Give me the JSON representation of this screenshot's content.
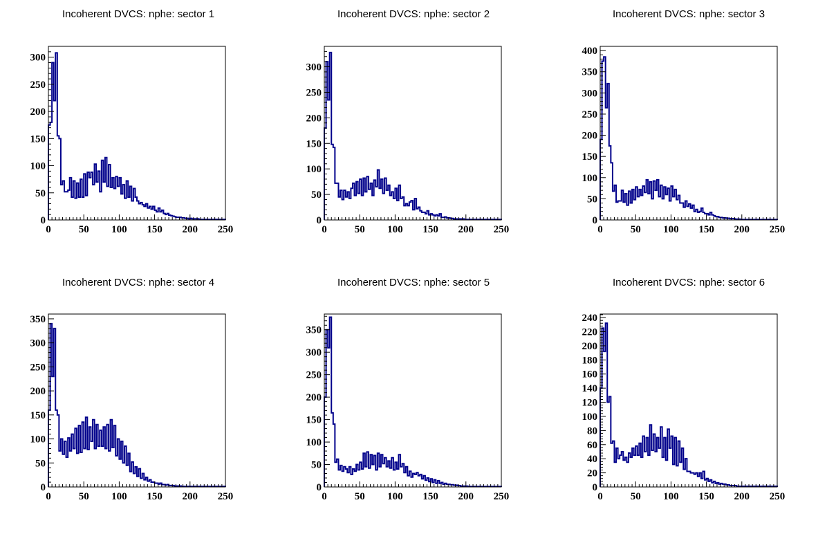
{
  "chart_data": [
    {
      "type": "histogram",
      "title": "Incoherent DVCS: nphe: sector 1",
      "xlim": [
        0,
        250
      ],
      "ylim": [
        0,
        320
      ],
      "xticks": [
        0,
        50,
        100,
        150,
        200,
        250
      ],
      "yticks": [
        0,
        50,
        100,
        150,
        200,
        250,
        300
      ],
      "bin_width": 2.5,
      "color": "#00008b",
      "values": [
        175,
        180,
        290,
        220,
        308,
        155,
        150,
        65,
        72,
        52,
        52,
        55,
        78,
        42,
        72,
        40,
        68,
        42,
        75,
        42,
        85,
        45,
        88,
        78,
        88,
        65,
        103,
        70,
        90,
        52,
        110,
        70,
        115,
        62,
        102,
        60,
        78,
        58,
        80,
        62,
        78,
        48,
        65,
        40,
        72,
        42,
        62,
        35,
        58,
        42,
        35,
        30,
        32,
        28,
        25,
        30,
        22,
        25,
        20,
        25,
        18,
        15,
        22,
        15,
        18,
        12,
        10,
        12,
        9,
        8,
        7,
        6,
        5,
        5,
        5,
        4,
        4,
        3,
        3,
        2,
        3,
        2,
        2,
        2,
        2,
        1,
        1,
        1,
        1,
        1,
        1,
        1,
        1,
        1,
        1,
        1,
        1,
        1,
        1,
        1
      ]
    },
    {
      "type": "histogram",
      "title": "Incoherent DVCS: nphe: sector 2",
      "xlim": [
        0,
        250
      ],
      "ylim": [
        0,
        340
      ],
      "xticks": [
        0,
        50,
        100,
        150,
        200,
        250
      ],
      "yticks": [
        0,
        50,
        100,
        150,
        200,
        250,
        300
      ],
      "bin_width": 2.5,
      "color": "#00008b",
      "values": [
        180,
        310,
        235,
        328,
        148,
        142,
        72,
        72,
        45,
        58,
        40,
        58,
        45,
        55,
        42,
        62,
        72,
        48,
        75,
        52,
        80,
        48,
        82,
        55,
        85,
        60,
        72,
        48,
        78,
        65,
        98,
        62,
        80,
        52,
        82,
        58,
        68,
        48,
        55,
        42,
        62,
        38,
        68,
        42,
        45,
        28,
        32,
        28,
        35,
        38,
        20,
        42,
        22,
        25,
        18,
        15,
        15,
        12,
        18,
        10,
        12,
        10,
        8,
        10,
        8,
        12,
        5,
        5,
        6,
        4,
        4,
        3,
        3,
        2,
        2,
        1,
        2,
        2,
        2,
        1,
        1,
        1,
        1,
        1,
        1,
        1,
        1,
        1,
        1,
        1,
        1,
        1,
        1,
        1,
        1,
        1,
        1,
        1,
        1,
        1
      ]
    },
    {
      "type": "histogram",
      "title": "Incoherent DVCS: nphe: sector 3",
      "xlim": [
        0,
        250
      ],
      "ylim": [
        0,
        410
      ],
      "xticks": [
        0,
        50,
        100,
        150,
        200,
        250
      ],
      "yticks": [
        0,
        50,
        100,
        150,
        200,
        250,
        300,
        350,
        400
      ],
      "bin_width": 2.5,
      "color": "#00008b",
      "values": [
        190,
        375,
        385,
        265,
        322,
        175,
        135,
        68,
        82,
        42,
        45,
        45,
        70,
        42,
        62,
        35,
        68,
        40,
        72,
        48,
        78,
        55,
        72,
        58,
        80,
        65,
        95,
        62,
        90,
        50,
        92,
        70,
        95,
        55,
        82,
        50,
        78,
        60,
        75,
        45,
        80,
        55,
        72,
        48,
        58,
        40,
        40,
        30,
        45,
        32,
        38,
        28,
        35,
        20,
        25,
        18,
        20,
        28,
        18,
        15,
        15,
        12,
        18,
        12,
        10,
        8,
        8,
        6,
        6,
        5,
        5,
        4,
        4,
        3,
        3,
        3,
        2,
        2,
        2,
        1,
        1,
        1,
        1,
        1,
        1,
        1,
        1,
        1,
        1,
        1,
        1,
        1,
        1,
        1,
        1,
        1,
        1,
        1,
        1,
        1
      ]
    },
    {
      "type": "histogram",
      "title": "Incoherent DVCS: nphe: sector 4",
      "xlim": [
        0,
        250
      ],
      "ylim": [
        0,
        360
      ],
      "xticks": [
        0,
        50,
        100,
        150,
        200,
        250
      ],
      "yticks": [
        0,
        50,
        100,
        150,
        200,
        250,
        300,
        350
      ],
      "bin_width": 2.5,
      "color": "#00008b",
      "values": [
        160,
        340,
        230,
        330,
        160,
        150,
        75,
        100,
        68,
        95,
        62,
        102,
        75,
        110,
        80,
        122,
        70,
        128,
        72,
        135,
        80,
        145,
        78,
        125,
        95,
        140,
        80,
        130,
        85,
        118,
        85,
        125,
        80,
        130,
        75,
        140,
        82,
        128,
        65,
        100,
        58,
        95,
        50,
        85,
        45,
        70,
        32,
        52,
        28,
        42,
        22,
        38,
        18,
        28,
        15,
        20,
        12,
        15,
        10,
        10,
        8,
        8,
        6,
        8,
        5,
        5,
        4,
        5,
        3,
        3,
        3,
        2,
        2,
        2,
        2,
        1,
        1,
        1,
        1,
        1,
        1,
        1,
        1,
        1,
        1,
        1,
        1,
        1,
        1,
        1,
        1,
        1,
        1,
        1,
        1,
        1,
        1,
        1,
        1,
        1
      ]
    },
    {
      "type": "histogram",
      "title": "Incoherent DVCS: nphe: sector 5",
      "xlim": [
        0,
        250
      ],
      "ylim": [
        0,
        385
      ],
      "xticks": [
        0,
        50,
        100,
        150,
        200,
        250
      ],
      "yticks": [
        0,
        50,
        100,
        150,
        200,
        250,
        300,
        350
      ],
      "bin_width": 2.5,
      "color": "#00008b",
      "values": [
        200,
        350,
        310,
        378,
        165,
        140,
        55,
        62,
        38,
        48,
        35,
        45,
        40,
        32,
        45,
        28,
        40,
        35,
        50,
        38,
        55,
        40,
        75,
        45,
        78,
        42,
        72,
        50,
        70,
        38,
        75,
        45,
        72,
        52,
        65,
        45,
        58,
        42,
        65,
        38,
        55,
        40,
        72,
        45,
        52,
        32,
        45,
        25,
        35,
        22,
        30,
        28,
        32,
        25,
        28,
        18,
        25,
        15,
        20,
        12,
        18,
        10,
        16,
        8,
        14,
        8,
        10,
        6,
        8,
        6,
        6,
        5,
        5,
        4,
        4,
        3,
        3,
        2,
        2,
        2,
        2,
        1,
        1,
        1,
        1,
        1,
        1,
        1,
        1,
        1,
        1,
        1,
        1,
        1,
        1,
        1,
        1,
        1,
        1,
        1
      ]
    },
    {
      "type": "histogram",
      "title": "Incoherent DVCS: nphe: sector 6",
      "xlim": [
        0,
        250
      ],
      "ylim": [
        0,
        245
      ],
      "xticks": [
        0,
        50,
        100,
        150,
        200,
        250
      ],
      "yticks": [
        0,
        20,
        40,
        60,
        80,
        100,
        120,
        140,
        160,
        180,
        200,
        220,
        240
      ],
      "bin_width": 2.5,
      "color": "#00008b",
      "values": [
        140,
        225,
        192,
        232,
        120,
        128,
        62,
        65,
        35,
        55,
        40,
        45,
        50,
        38,
        42,
        35,
        48,
        42,
        55,
        45,
        58,
        45,
        62,
        42,
        72,
        50,
        70,
        45,
        88,
        52,
        75,
        50,
        70,
        55,
        85,
        42,
        70,
        38,
        82,
        55,
        72,
        32,
        70,
        30,
        65,
        35,
        55,
        25,
        40,
        22,
        22,
        20,
        20,
        18,
        20,
        15,
        20,
        12,
        22,
        10,
        12,
        8,
        10,
        6,
        8,
        5,
        6,
        4,
        5,
        4,
        4,
        3,
        3,
        2,
        2,
        2,
        2,
        1,
        1,
        1,
        1,
        1,
        1,
        1,
        1,
        1,
        1,
        1,
        1,
        1,
        1,
        1,
        1,
        1,
        1,
        1,
        1,
        1,
        1,
        1
      ]
    }
  ]
}
